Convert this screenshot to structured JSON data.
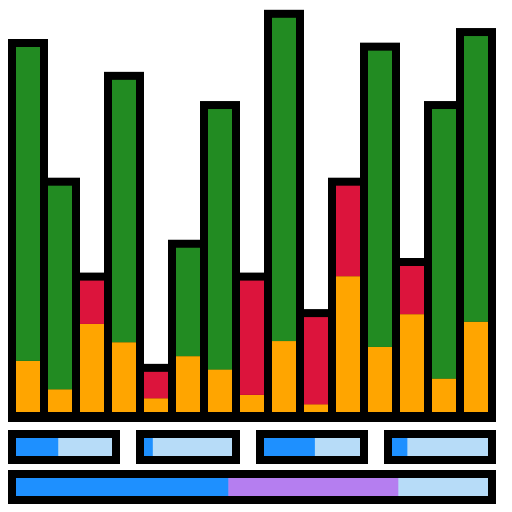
{
  "colors": {
    "outline": "#000000",
    "green": "#228B22",
    "red": "#DC143C",
    "orange": "#FFA500",
    "blue": "#1E90FF",
    "light_blue": "#B7DCF8",
    "purple": "#B57EF0",
    "background": "#FFFFFF"
  },
  "bars": [
    {
      "orange": 0.14,
      "red": 0.0,
      "green": 0.86
    },
    {
      "orange": 0.1,
      "red": 0.0,
      "green": 0.9
    },
    {
      "orange": 0.67,
      "red": 0.33,
      "green": 0.0
    },
    {
      "orange": 0.21,
      "red": 0.0,
      "green": 0.79
    },
    {
      "orange": 0.34,
      "red": 0.66,
      "green": 0.0
    },
    {
      "orange": 0.34,
      "red": 0.0,
      "green": 0.66
    },
    {
      "orange": 0.14,
      "red": 0.0,
      "green": 0.86
    },
    {
      "orange": 0.13,
      "red": 0.87,
      "green": 0.0
    },
    {
      "orange": 0.18,
      "red": 0.0,
      "green": 0.82
    },
    {
      "orange": 0.08,
      "red": 0.92,
      "green": 0.0
    },
    {
      "orange": 0.6,
      "red": 0.4,
      "green": 0.0
    },
    {
      "orange": 0.18,
      "red": 0.0,
      "green": 0.82
    },
    {
      "orange": 0.67,
      "red": 0.33,
      "green": 0.0
    },
    {
      "orange": 0.11,
      "red": 0.0,
      "green": 0.89
    },
    {
      "orange": 0.24,
      "red": 0.0,
      "green": 0.76
    }
  ],
  "bar_levels": [
    1.0,
    0.62,
    0.36,
    0.91,
    0.11,
    0.45,
    0.83,
    0.36,
    1.08,
    0.26,
    0.62,
    0.99,
    0.4,
    0.83,
    1.03
  ],
  "sliders": [
    {
      "fill": 0.44
    },
    {
      "fill": 0.1
    },
    {
      "fill": 0.53
    },
    {
      "fill": 0.16
    }
  ],
  "progress": {
    "blue": 0.45,
    "purple": 0.36
  }
}
